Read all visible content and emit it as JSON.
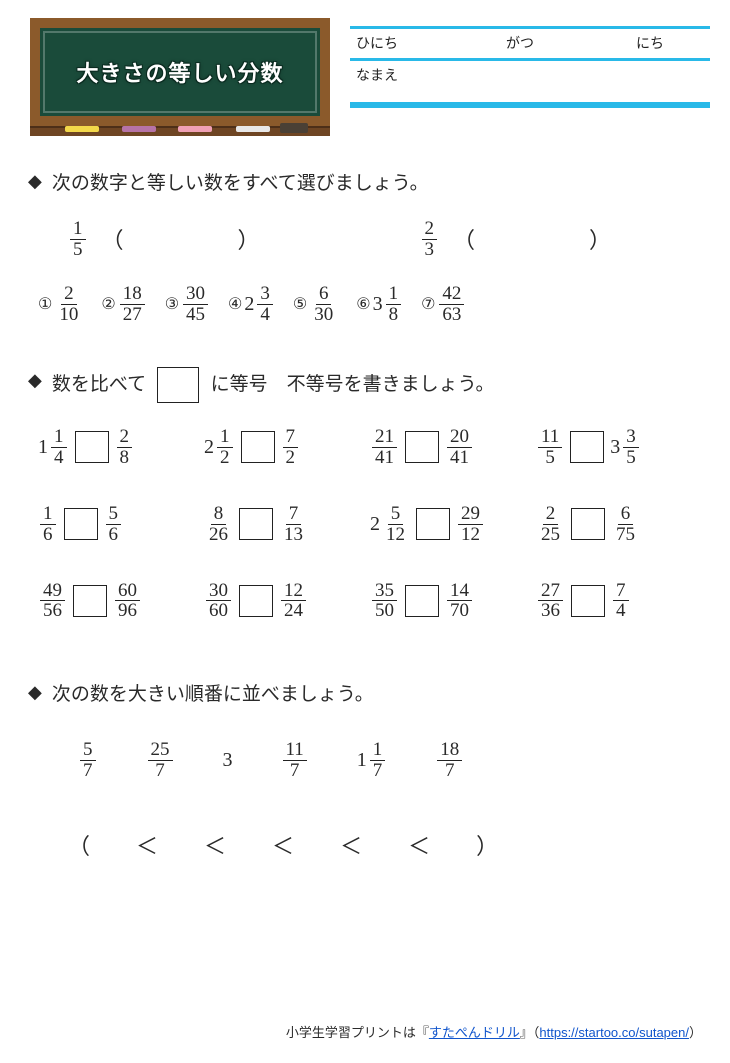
{
  "blackboard": {
    "title": "大きさの等しい分数"
  },
  "info": {
    "date_label": "ひにち",
    "month_label": "がつ",
    "day_label": "にち",
    "name_label": "なまえ"
  },
  "accent_color": "#29b9e8",
  "q1": {
    "instruction": "次の数字と等しい数をすべて選びましょう。",
    "targets": [
      {
        "num": "1",
        "den": "5"
      },
      {
        "num": "2",
        "den": "3"
      }
    ],
    "paren_open": "（",
    "paren_close": "）",
    "options": [
      {
        "circle": "①",
        "whole": "",
        "num": "2",
        "den": "10"
      },
      {
        "circle": "②",
        "whole": "",
        "num": "18",
        "den": "27"
      },
      {
        "circle": "③",
        "whole": "",
        "num": "30",
        "den": "45"
      },
      {
        "circle": "④",
        "whole": "2",
        "num": "3",
        "den": "4"
      },
      {
        "circle": "⑤",
        "whole": "",
        "num": "6",
        "den": "30"
      },
      {
        "circle": "⑥",
        "whole": "3",
        "num": "1",
        "den": "8"
      },
      {
        "circle": "⑦",
        "whole": "",
        "num": "42",
        "den": "63"
      }
    ]
  },
  "q2": {
    "instruction_pre": "数を比べて",
    "instruction_post": "に等号　不等号を書きましょう。",
    "items": [
      {
        "l_whole": "1",
        "l_num": "1",
        "l_den": "4",
        "r_whole": "",
        "r_num": "2",
        "r_den": "8"
      },
      {
        "l_whole": "2",
        "l_num": "1",
        "l_den": "2",
        "r_whole": "",
        "r_num": "7",
        "r_den": "2"
      },
      {
        "l_whole": "",
        "l_num": "21",
        "l_den": "41",
        "r_whole": "",
        "r_num": "20",
        "r_den": "41"
      },
      {
        "l_whole": "",
        "l_num": "11",
        "l_den": "5",
        "r_whole": "3",
        "r_num": "3",
        "r_den": "5"
      },
      {
        "l_whole": "",
        "l_num": "1",
        "l_den": "6",
        "r_whole": "",
        "r_num": "5",
        "r_den": "6"
      },
      {
        "l_whole": "",
        "l_num": "8",
        "l_den": "26",
        "r_whole": "",
        "r_num": "7",
        "r_den": "13"
      },
      {
        "l_whole": "2",
        "l_num": "5",
        "l_den": "12",
        "r_whole": "",
        "r_num": "29",
        "r_den": "12"
      },
      {
        "l_whole": "",
        "l_num": "2",
        "l_den": "25",
        "r_whole": "",
        "r_num": "6",
        "r_den": "75"
      },
      {
        "l_whole": "",
        "l_num": "49",
        "l_den": "56",
        "r_whole": "",
        "r_num": "60",
        "r_den": "96"
      },
      {
        "l_whole": "",
        "l_num": "30",
        "l_den": "60",
        "r_whole": "",
        "r_num": "12",
        "r_den": "24"
      },
      {
        "l_whole": "",
        "l_num": "35",
        "l_den": "50",
        "r_whole": "",
        "r_num": "14",
        "r_den": "70"
      },
      {
        "l_whole": "",
        "l_num": "27",
        "l_den": "36",
        "r_whole": "",
        "r_num": "7",
        "r_den": "4"
      }
    ]
  },
  "q3": {
    "instruction": "次の数を大きい順番に並べましょう。",
    "list": [
      {
        "whole": "",
        "num": "5",
        "den": "7"
      },
      {
        "whole": "",
        "num": "25",
        "den": "7"
      },
      {
        "whole": "3",
        "num": "",
        "den": ""
      },
      {
        "whole": "",
        "num": "11",
        "den": "7"
      },
      {
        "whole": "1",
        "num": "1",
        "den": "7"
      },
      {
        "whole": "",
        "num": "18",
        "den": "7"
      }
    ],
    "answer_open": "（",
    "answer_close": "）",
    "lt": "＜"
  },
  "footer": {
    "prefix": "小学生学習プリントは『",
    "brand": "すたぺんドリル",
    "suffix": "』（",
    "url_text": "https://startoo.co/sutapen/",
    "end": "）"
  }
}
